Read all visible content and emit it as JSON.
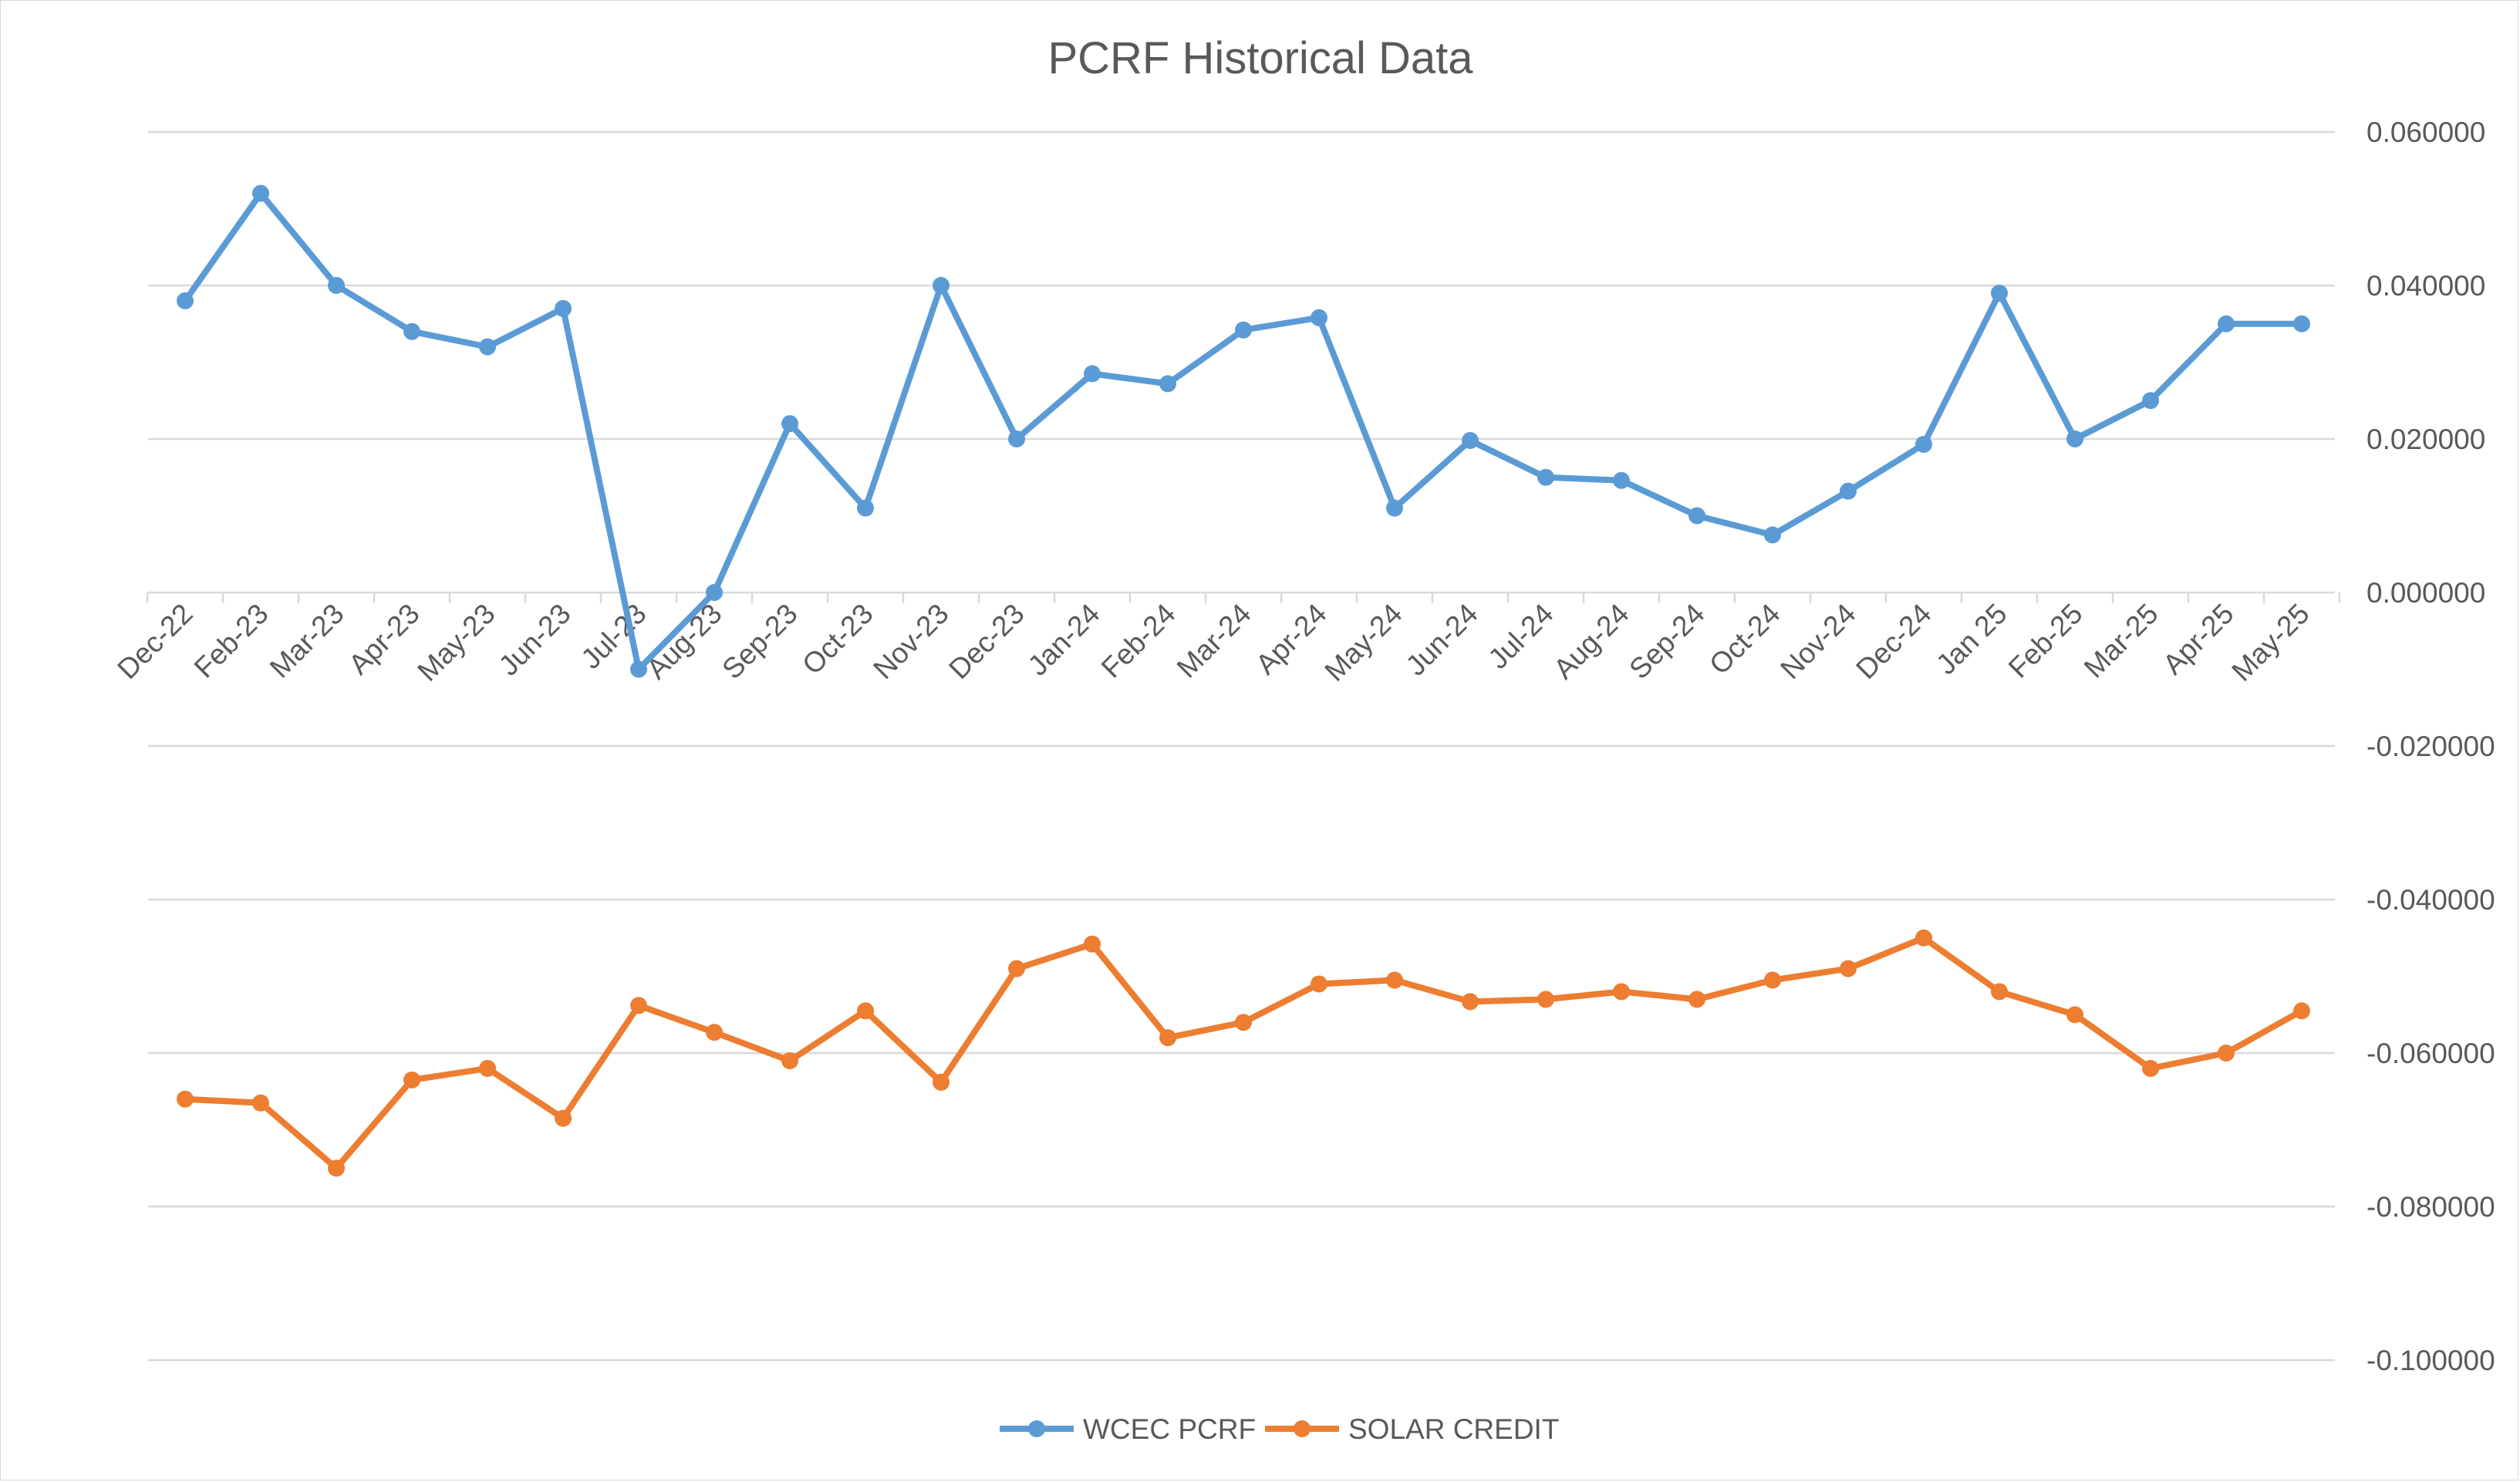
{
  "chart_data": {
    "type": "line",
    "title": "PCRF Historical Data",
    "xlabel": "",
    "ylabel": "",
    "categories": [
      "Dec-22",
      "Feb-23",
      "Mar-23",
      "Apr-23",
      "May-23",
      "Jun-23",
      "Jul-23",
      "Aug-23",
      "Sep-23",
      "Oct-23",
      "Nov-23",
      "Dec-23",
      "Jan-24",
      "Feb-24",
      "Mar-24",
      "Apr-24",
      "May-24",
      "Jun-24",
      "Jul-24",
      "Aug-24",
      "Sep-24",
      "Oct-24",
      "Nov-24",
      "Dec-24",
      "Jan 25",
      "Feb-25",
      "Mar-25",
      "Apr-25",
      "May-25"
    ],
    "ylim": [
      -0.1,
      0.06
    ],
    "yticks": [
      0.06,
      0.04,
      0.02,
      0.0,
      -0.02,
      -0.04,
      -0.06,
      -0.08,
      -0.1
    ],
    "ytick_labels": [
      "0.060000",
      "0.040000",
      "0.020000",
      "0.000000",
      "-0.020000",
      "-0.040000",
      "-0.060000",
      "-0.080000",
      "-0.100000"
    ],
    "y_axis_side": "right",
    "grid": true,
    "legend_position": "bottom",
    "series": [
      {
        "name": "WCEC PCRF",
        "color": "#5b9bd5",
        "values": [
          0.038,
          0.052,
          0.04,
          0.034,
          0.032,
          0.037,
          -0.01,
          0.0,
          0.022,
          0.011,
          0.04,
          0.02,
          0.0285,
          0.0272,
          0.0342,
          0.0358,
          0.011,
          0.0198,
          0.015,
          0.0146,
          0.01,
          0.0075,
          0.0132,
          0.0193,
          0.039,
          0.02,
          0.025,
          0.035,
          0.035
        ]
      },
      {
        "name": "SOLAR CREDIT",
        "color": "#ed7d31",
        "values": [
          -0.066,
          -0.0665,
          -0.075,
          -0.0635,
          -0.062,
          -0.0685,
          -0.0538,
          -0.0573,
          -0.061,
          -0.0545,
          -0.0638,
          -0.049,
          -0.0458,
          -0.058,
          -0.056,
          -0.051,
          -0.0505,
          -0.0533,
          -0.053,
          -0.052,
          -0.053,
          -0.0505,
          -0.049,
          -0.045,
          -0.052,
          -0.055,
          -0.062,
          -0.06,
          -0.0545
        ]
      }
    ]
  }
}
